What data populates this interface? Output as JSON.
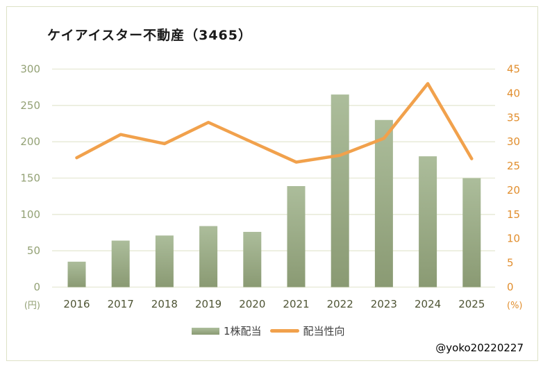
{
  "title": "ケイアイスター不動産（3465）",
  "watermark": "@yoko20220227",
  "legend": {
    "items": [
      {
        "label": "1株配当",
        "type": "bar"
      },
      {
        "label": "配当性向",
        "type": "line"
      }
    ]
  },
  "colors": {
    "title": "#1a1a1a",
    "bar_top": "#acbd9b",
    "bar_bottom": "#8a9a73",
    "legend_bar_swatch": "#9dac83",
    "line": "#f1a14c",
    "left_axis_labels": "#93a175",
    "right_axis_labels": "#e18e2e",
    "x_axis_labels": "#4e5434",
    "gridline": "#e9ecda",
    "frame": "#dde1c6",
    "legend_text": "#3f3f3f"
  },
  "chart_data": {
    "type": "bar+line combo, dual axis",
    "title": "ケイアイスター不動産（3465）",
    "categories": [
      "2016",
      "2017",
      "2018",
      "2019",
      "2020",
      "2021",
      "2022",
      "2023",
      "2024",
      "2025"
    ],
    "series": [
      {
        "name": "1株配当",
        "type": "bar",
        "axis": "left",
        "unit": "円",
        "values": [
          35,
          64,
          71,
          84,
          76,
          139,
          265,
          230,
          180,
          150
        ]
      },
      {
        "name": "配当性向",
        "type": "line",
        "axis": "right",
        "unit": "%",
        "values": [
          26.7,
          31.5,
          29.6,
          34.0,
          29.9,
          25.8,
          27.2,
          30.7,
          42.0,
          26.5
        ]
      }
    ],
    "ylim_left": [
      0,
      300
    ],
    "ytick_left": 50,
    "ylabel_left": "(円)",
    "ylim_right": [
      0,
      45
    ],
    "ytick_right": 5,
    "ylabel_right": "(%)",
    "grid": "horizontal only",
    "legend_position": "bottom center"
  }
}
